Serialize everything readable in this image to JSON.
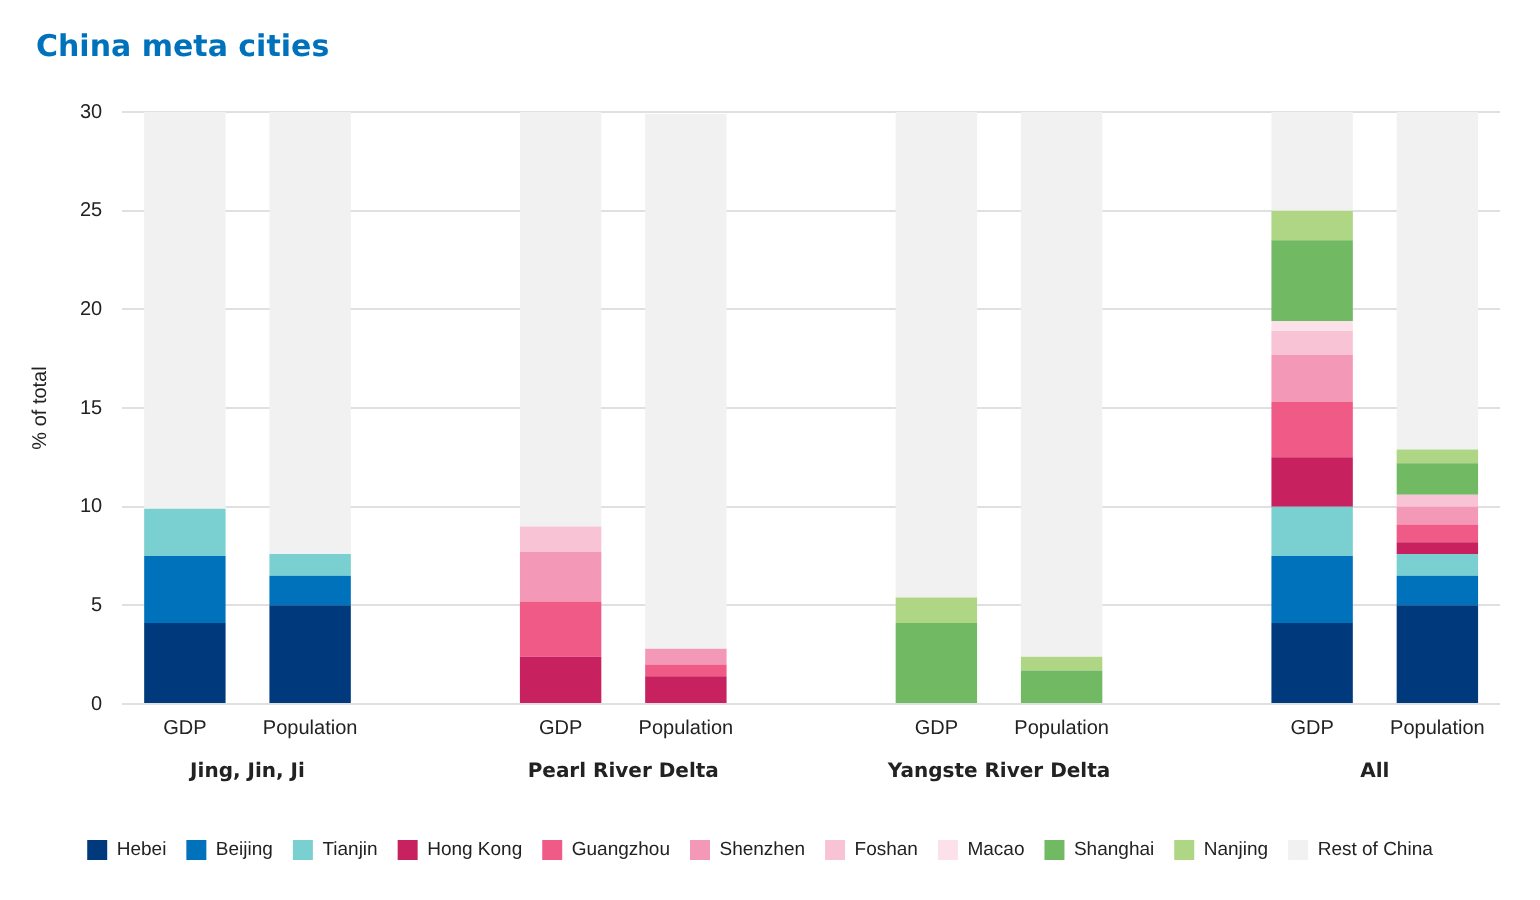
{
  "chart_data": {
    "type": "bar",
    "title": "China meta cities",
    "ylabel": "% of total",
    "categories": [
      "GDP",
      "Population",
      null,
      "GDP",
      "Population",
      null,
      "GDP",
      "Population",
      null,
      "GDP",
      "Population"
    ],
    "stacked": true,
    "ylim": [
      0,
      30
    ],
    "yticks": [
      0,
      5,
      10,
      15,
      20,
      25,
      30
    ],
    "grid": "y",
    "legend": "bottom",
    "annotations": [
      "Jing, Jin, Ji",
      "Pearl River Delta",
      "Yangste River Delta",
      "All"
    ],
    "series": [
      {
        "name": "Hebei",
        "color": "#003a7d",
        "values": [
          4.1,
          5.0,
          null,
          null,
          null,
          null,
          null,
          null,
          null,
          4.1,
          5.0
        ]
      },
      {
        "name": "Beijing",
        "color": "#0072bc",
        "values": [
          3.4,
          1.5,
          null,
          null,
          null,
          null,
          null,
          null,
          null,
          3.4,
          1.5
        ]
      },
      {
        "name": "Tianjin",
        "color": "#7acfd0",
        "values": [
          2.4,
          1.1,
          null,
          null,
          null,
          null,
          null,
          null,
          null,
          2.5,
          1.1
        ]
      },
      {
        "name": "Hong Kong",
        "color": "#c8215f",
        "values": [
          null,
          null,
          null,
          2.4,
          1.4,
          null,
          null,
          null,
          null,
          2.5,
          0.6
        ]
      },
      {
        "name": "Guangzhou",
        "color": "#ef5a87",
        "values": [
          null,
          null,
          null,
          2.8,
          0.6,
          null,
          null,
          null,
          null,
          2.8,
          0.9
        ]
      },
      {
        "name": "Shenzhen",
        "color": "#f398b6",
        "values": [
          null,
          null,
          null,
          2.5,
          0.8,
          null,
          null,
          null,
          null,
          2.4,
          0.9
        ]
      },
      {
        "name": "Foshan",
        "color": "#f8c3d5",
        "values": [
          null,
          null,
          null,
          1.3,
          null,
          null,
          null,
          null,
          null,
          1.2,
          0.6
        ]
      },
      {
        "name": "Macao",
        "color": "#fde1ea",
        "values": [
          null,
          null,
          null,
          null,
          null,
          null,
          null,
          null,
          null,
          0.5,
          null
        ]
      },
      {
        "name": "Shanghai",
        "color": "#72b963",
        "values": [
          null,
          null,
          null,
          null,
          null,
          null,
          4.1,
          1.7,
          null,
          4.1,
          1.6
        ]
      },
      {
        "name": "Nanjing",
        "color": "#aed684",
        "values": [
          null,
          null,
          null,
          null,
          null,
          null,
          1.3,
          0.7,
          null,
          1.5,
          0.7
        ]
      },
      {
        "name": "Rest of China",
        "color": "#f1f1f1",
        "values": [
          20.1,
          22.4,
          null,
          21.1,
          27.1,
          null,
          24.6,
          27.6,
          null,
          5.1,
          17.1
        ]
      }
    ]
  }
}
